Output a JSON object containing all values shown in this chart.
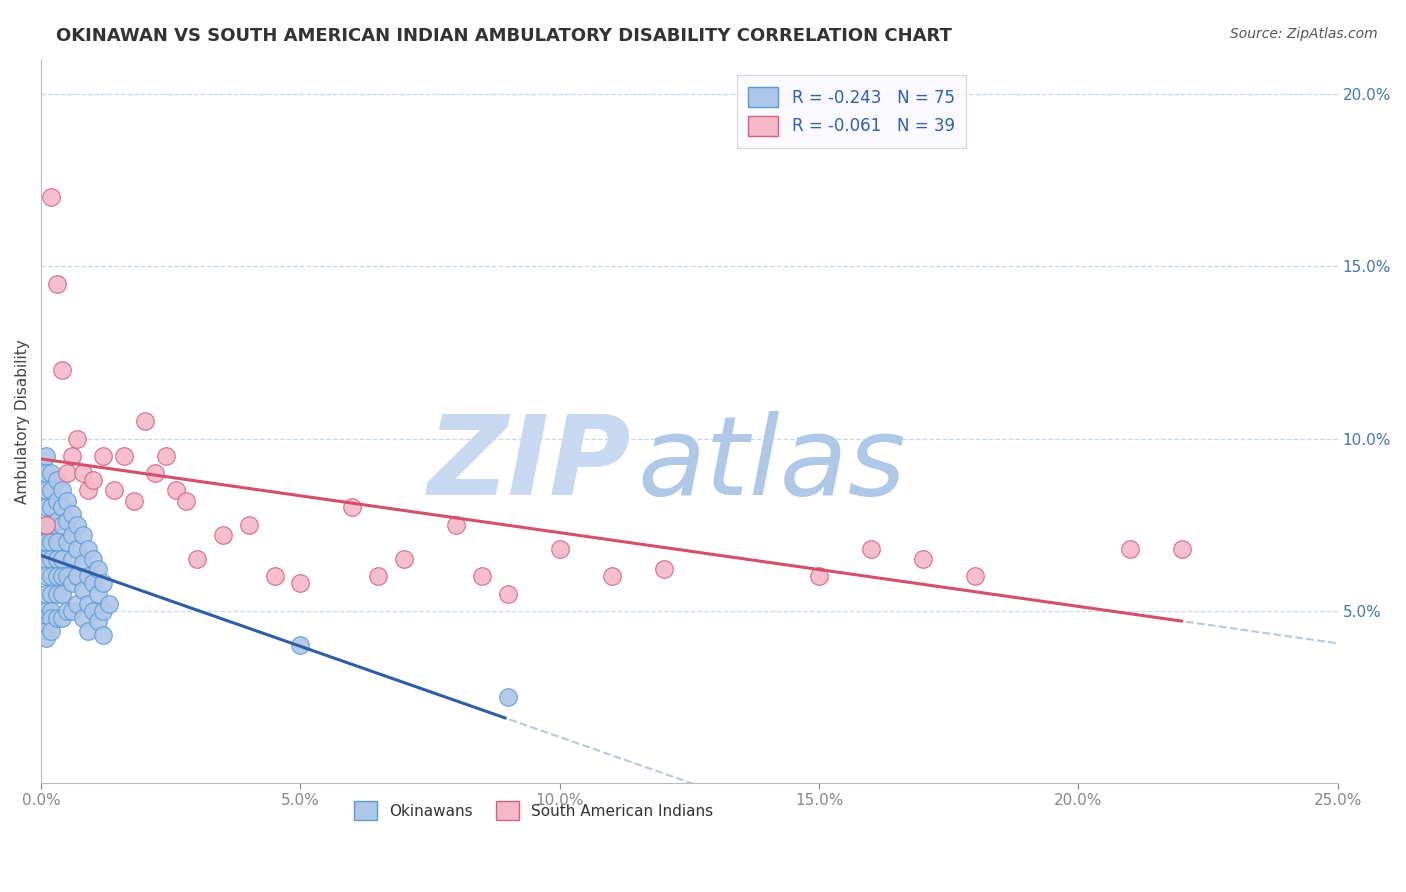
{
  "title": "OKINAWAN VS SOUTH AMERICAN INDIAN AMBULATORY DISABILITY CORRELATION CHART",
  "source": "Source: ZipAtlas.com",
  "ylabel": "Ambulatory Disability",
  "xlim": [
    0.0,
    0.25
  ],
  "ylim": [
    0.0,
    0.21
  ],
  "xticks": [
    0.0,
    0.05,
    0.1,
    0.15,
    0.2,
    0.25
  ],
  "xticklabels": [
    "0.0%",
    "5.0%",
    "10.0%",
    "15.0%",
    "20.0%",
    "25.0%"
  ],
  "yticks_right": [
    0.05,
    0.1,
    0.15,
    0.2
  ],
  "yticklabels_right": [
    "5.0%",
    "10.0%",
    "15.0%",
    "20.0%"
  ],
  "okinawan_color": "#aec6e8",
  "okinawan_edge": "#5b9bd5",
  "south_american_color": "#f4b8c8",
  "south_american_edge": "#d46080",
  "trend_okinawan_color": "#2e5fa3",
  "trend_south_american_color": "#d4506a",
  "trend_extend_color": "#b8c8e0",
  "background_color": "#ffffff",
  "grid_color": "#c8d8ec",
  "watermark_zip": "ZIP",
  "watermark_atlas": "atlas",
  "watermark_color": "#d8e4f4",
  "legend_label_1": "R = -0.243   N = 75",
  "legend_label_2": "R = -0.061   N = 39",
  "okinawan_x": [
    0.0005,
    0.001,
    0.001,
    0.001,
    0.001,
    0.001,
    0.001,
    0.001,
    0.001,
    0.001,
    0.001,
    0.001,
    0.001,
    0.001,
    0.001,
    0.002,
    0.002,
    0.002,
    0.002,
    0.002,
    0.002,
    0.002,
    0.002,
    0.002,
    0.002,
    0.002,
    0.003,
    0.003,
    0.003,
    0.003,
    0.003,
    0.003,
    0.003,
    0.003,
    0.004,
    0.004,
    0.004,
    0.004,
    0.004,
    0.004,
    0.004,
    0.005,
    0.005,
    0.005,
    0.005,
    0.005,
    0.006,
    0.006,
    0.006,
    0.006,
    0.006,
    0.007,
    0.007,
    0.007,
    0.007,
    0.008,
    0.008,
    0.008,
    0.008,
    0.009,
    0.009,
    0.009,
    0.009,
    0.01,
    0.01,
    0.01,
    0.011,
    0.011,
    0.011,
    0.012,
    0.012,
    0.012,
    0.013,
    0.05,
    0.09
  ],
  "okinawan_y": [
    0.07,
    0.095,
    0.09,
    0.085,
    0.08,
    0.075,
    0.07,
    0.065,
    0.06,
    0.055,
    0.05,
    0.048,
    0.046,
    0.044,
    0.042,
    0.09,
    0.085,
    0.08,
    0.075,
    0.07,
    0.065,
    0.06,
    0.055,
    0.05,
    0.048,
    0.044,
    0.088,
    0.082,
    0.076,
    0.07,
    0.065,
    0.06,
    0.055,
    0.048,
    0.085,
    0.08,
    0.075,
    0.065,
    0.06,
    0.055,
    0.048,
    0.082,
    0.076,
    0.07,
    0.06,
    0.05,
    0.078,
    0.072,
    0.065,
    0.058,
    0.05,
    0.075,
    0.068,
    0.06,
    0.052,
    0.072,
    0.064,
    0.056,
    0.048,
    0.068,
    0.06,
    0.052,
    0.044,
    0.065,
    0.058,
    0.05,
    0.062,
    0.055,
    0.047,
    0.058,
    0.05,
    0.043,
    0.052,
    0.04,
    0.025
  ],
  "south_american_x": [
    0.001,
    0.002,
    0.003,
    0.004,
    0.005,
    0.006,
    0.007,
    0.008,
    0.009,
    0.01,
    0.012,
    0.014,
    0.016,
    0.018,
    0.02,
    0.022,
    0.024,
    0.026,
    0.028,
    0.03,
    0.035,
    0.04,
    0.045,
    0.05,
    0.06,
    0.065,
    0.07,
    0.08,
    0.085,
    0.09,
    0.1,
    0.11,
    0.12,
    0.15,
    0.16,
    0.17,
    0.18,
    0.21,
    0.22
  ],
  "south_american_y": [
    0.075,
    0.17,
    0.145,
    0.12,
    0.09,
    0.095,
    0.1,
    0.09,
    0.085,
    0.088,
    0.095,
    0.085,
    0.095,
    0.082,
    0.105,
    0.09,
    0.095,
    0.085,
    0.082,
    0.065,
    0.072,
    0.075,
    0.06,
    0.058,
    0.08,
    0.06,
    0.065,
    0.075,
    0.06,
    0.055,
    0.068,
    0.06,
    0.062,
    0.06,
    0.068,
    0.065,
    0.06,
    0.068,
    0.068
  ]
}
